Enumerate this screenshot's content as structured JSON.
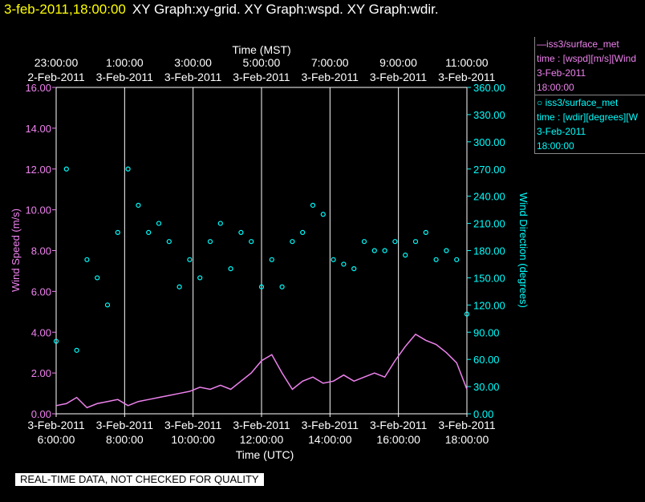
{
  "header": {
    "timestamp": "3-feb-2011,18:00:00",
    "graphs": "XY Graph:xy-grid.  XY Graph:wspd.  XY Graph:wdir."
  },
  "legend": {
    "series1": {
      "line1": "—iss3/surface_met",
      "line2": "time : [wspd][m/s][Wind",
      "line3": "3-Feb-2011",
      "line4": "18:00:00"
    },
    "series2": {
      "line1": "○ iss3/surface_met",
      "line2": "time : [wdir][degrees][W",
      "line3": "3-Feb-2011",
      "line4": "18:00:00"
    }
  },
  "quality_note": "REAL-TIME DATA, NOT CHECKED FOR QUALITY",
  "colors": {
    "wind_speed": "#ee82ee",
    "wind_direction": "#00ffff",
    "timestamp": "#ffff00"
  },
  "chart_data": {
    "type": "line",
    "top_axis": {
      "label": "Time (MST)",
      "ticks": [
        {
          "time": "23:00:00",
          "date": "2-Feb-2011"
        },
        {
          "time": "1:00:00",
          "date": "3-Feb-2011"
        },
        {
          "time": "3:00:00",
          "date": "3-Feb-2011"
        },
        {
          "time": "5:00:00",
          "date": "3-Feb-2011"
        },
        {
          "time": "7:00:00",
          "date": "3-Feb-2011"
        },
        {
          "time": "9:00:00",
          "date": "3-Feb-2011"
        },
        {
          "time": "11:00:00",
          "date": "3-Feb-2011"
        }
      ]
    },
    "bottom_axis": {
      "label": "Time (UTC)",
      "ticks": [
        {
          "date": "3-Feb-2011",
          "time": "6:00:00"
        },
        {
          "date": "3-Feb-2011",
          "time": "8:00:00"
        },
        {
          "date": "3-Feb-2011",
          "time": "10:00:00"
        },
        {
          "date": "3-Feb-2011",
          "time": "12:00:00"
        },
        {
          "date": "3-Feb-2011",
          "time": "14:00:00"
        },
        {
          "date": "3-Feb-2011",
          "time": "16:00:00"
        },
        {
          "date": "3-Feb-2011",
          "time": "18:00:00"
        }
      ],
      "xlim_utc_hours": [
        6,
        18
      ]
    },
    "left_axis": {
      "label": "Wind Speed (m/s)",
      "ylim": [
        0,
        16
      ],
      "ticks": [
        "0.00",
        "2.00",
        "4.00",
        "6.00",
        "8.00",
        "10.00",
        "12.00",
        "14.00",
        "16.00"
      ]
    },
    "right_axis": {
      "label": "Wind Direction (degrees)",
      "ylim": [
        0,
        360
      ],
      "ticks": [
        "0.00",
        "30.00",
        "60.00",
        "90.00",
        "120.00",
        "150.00",
        "180.00",
        "210.00",
        "240.00",
        "270.00",
        "300.00",
        "330.00",
        "360.00"
      ]
    },
    "grid": "vertical",
    "series": [
      {
        "name": "iss3/surface_met time : [wspd][m/s]",
        "style": "line",
        "x_utc_hours": [
          6.0,
          6.3,
          6.6,
          6.9,
          7.2,
          7.5,
          7.8,
          8.1,
          8.4,
          8.7,
          9.0,
          9.3,
          9.6,
          9.9,
          10.2,
          10.5,
          10.8,
          11.1,
          11.4,
          11.7,
          12.0,
          12.3,
          12.6,
          12.9,
          13.2,
          13.5,
          13.8,
          14.1,
          14.4,
          14.7,
          15.0,
          15.3,
          15.6,
          15.9,
          16.2,
          16.5,
          16.8,
          17.1,
          17.4,
          17.7,
          18.0
        ],
        "values": [
          0.4,
          0.5,
          0.8,
          0.3,
          0.5,
          0.6,
          0.7,
          0.4,
          0.6,
          0.7,
          0.8,
          0.9,
          1.0,
          1.1,
          1.3,
          1.2,
          1.4,
          1.2,
          1.6,
          2.0,
          2.6,
          2.9,
          2.0,
          1.2,
          1.6,
          1.8,
          1.5,
          1.6,
          1.9,
          1.6,
          1.8,
          2.0,
          1.8,
          2.6,
          3.3,
          3.9,
          3.6,
          3.4,
          3.0,
          2.5,
          1.2
        ]
      },
      {
        "name": "iss3/surface_met time : [wdir][degrees]",
        "style": "points",
        "x_utc_hours": [
          6.0,
          6.3,
          6.6,
          6.9,
          7.2,
          7.5,
          7.8,
          8.1,
          8.4,
          8.7,
          9.0,
          9.3,
          9.6,
          9.9,
          10.2,
          10.5,
          10.8,
          11.1,
          11.4,
          11.7,
          12.0,
          12.3,
          12.6,
          12.9,
          13.2,
          13.5,
          13.8,
          14.1,
          14.4,
          14.7,
          15.0,
          15.3,
          15.6,
          15.9,
          16.2,
          16.5,
          16.8,
          17.1,
          17.4,
          17.7,
          18.0
        ],
        "values": [
          80,
          270,
          70,
          170,
          150,
          120,
          200,
          270,
          230,
          200,
          210,
          190,
          140,
          170,
          150,
          190,
          210,
          160,
          200,
          190,
          140,
          170,
          140,
          190,
          200,
          230,
          220,
          170,
          165,
          160,
          190,
          180,
          180,
          190,
          175,
          190,
          200,
          170,
          180,
          170,
          110
        ]
      }
    ]
  }
}
